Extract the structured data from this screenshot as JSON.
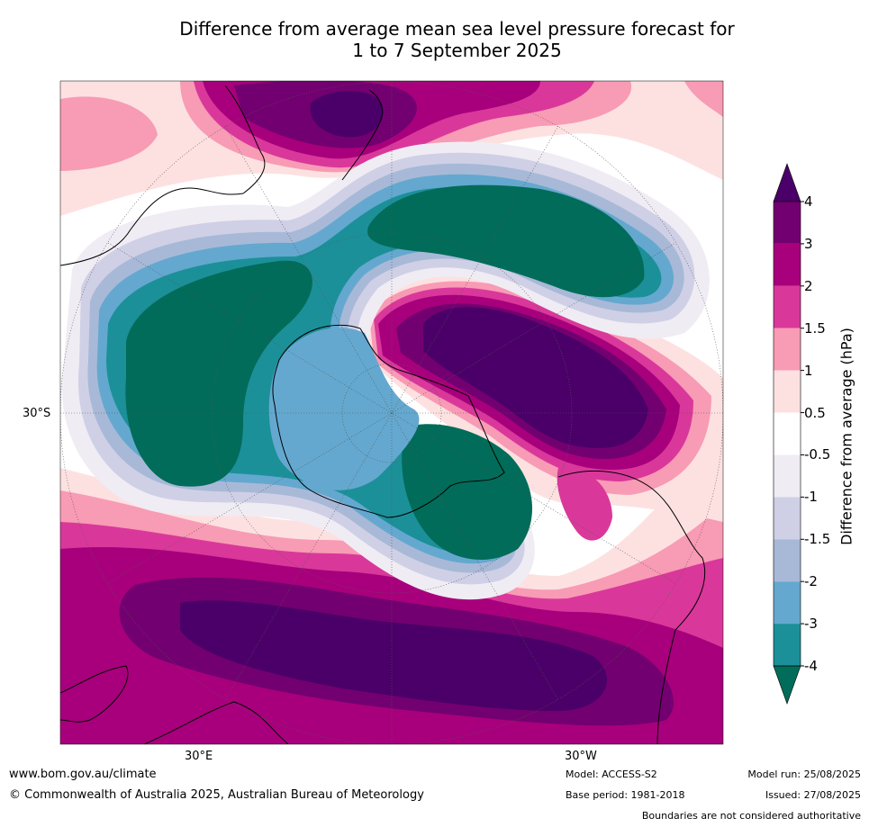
{
  "title_line1": "Difference from average mean sea level pressure forecast for",
  "title_line2": "1 to 7 September 2025",
  "colorbar": {
    "title": "Difference from average (hPa)",
    "ticks": [
      "4",
      "3",
      "2",
      "1.5",
      "1",
      "0.5",
      "-0.5",
      "-1",
      "-1.5",
      "-2",
      "-3",
      "-4"
    ],
    "colors": {
      "above_4": "#4a0068",
      "3_to_4": "#730070",
      "2_to_3": "#a8007c",
      "1.5_to_2": "#d9389a",
      "1_to_1.5": "#f89bb5",
      "0.5_to_1": "#fde1e1",
      "-0.5_to_0.5": "#ffffff",
      "-1_to_-0.5": "#f0ecf4",
      "-1.5_to_-1": "#cfd0e6",
      "-2_to_-1.5": "#a8b9d7",
      "-3_to_-2": "#64a8cf",
      "-4_to_-3": "#1c9099",
      "below_-4": "#016c59"
    }
  },
  "map": {
    "projection": "south polar stereographic",
    "lat_label": "30°S",
    "lon_labels": [
      "30°E",
      "30°W"
    ]
  },
  "footer": {
    "website": "www.bom.gov.au/climate",
    "copyright": "© Commonwealth of Australia 2025, Australian Bureau of Meteorology",
    "model": "Model: ACCESS-S2",
    "base_period": "Base period: 1981-2018",
    "model_run": "Model run: 25/08/2025",
    "issued": "Issued: 27/08/2025",
    "disclaimer": "Boundaries are not considered authoritative"
  }
}
